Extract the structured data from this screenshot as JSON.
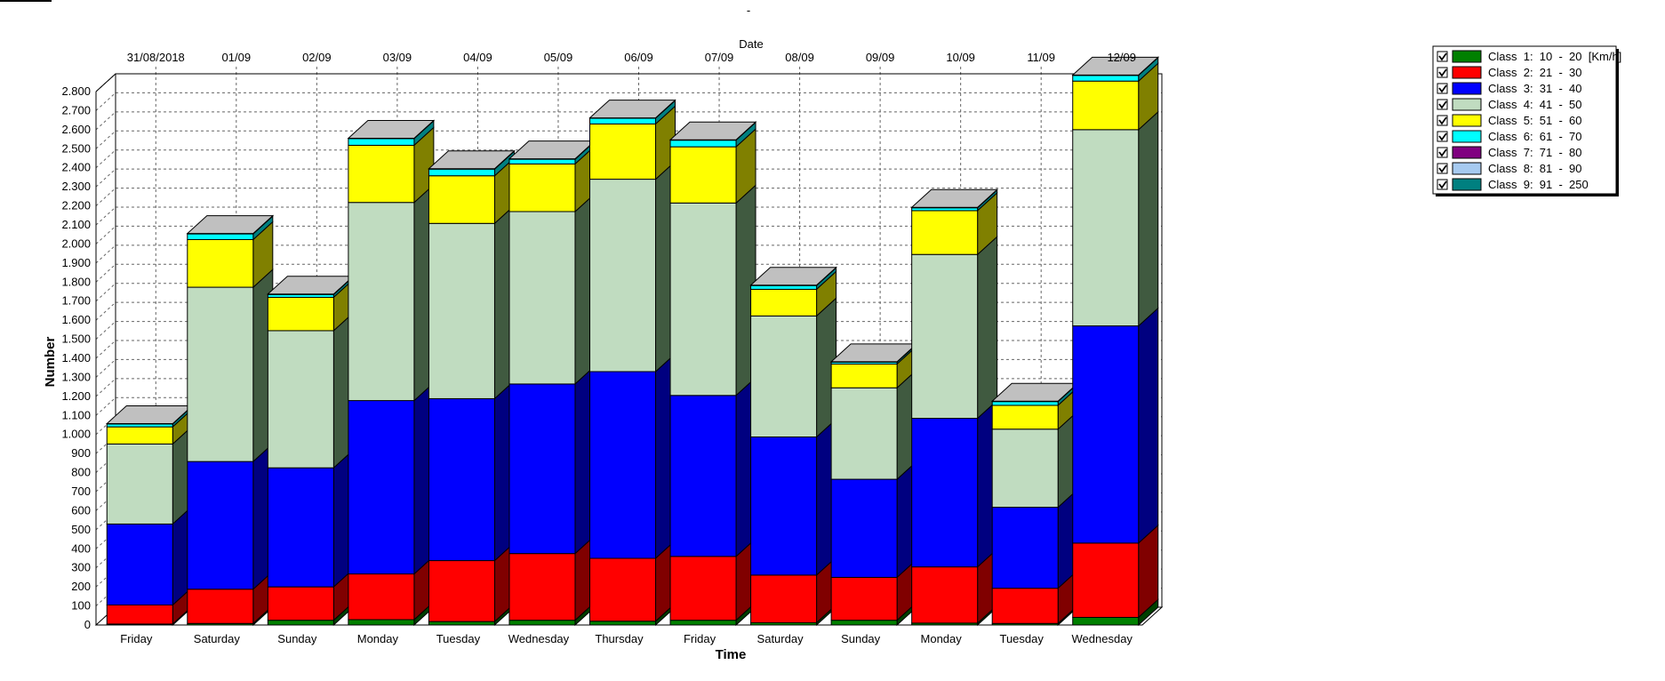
{
  "page": {
    "top_mark": "-"
  },
  "chart_data": {
    "type": "bar",
    "stacked": true,
    "three_d": true,
    "title": "",
    "xlabel": "Time",
    "ylabel": "Number",
    "top_axis_label": "Date",
    "categories": [
      "Friday",
      "Saturday",
      "Sunday",
      "Monday",
      "Tuesday",
      "Wednesday",
      "Thursday",
      "Friday",
      "Saturday",
      "Sunday",
      "Monday",
      "Tuesday",
      "Wednesday"
    ],
    "top_categories": [
      "31/08/2018",
      "01/09",
      "02/09",
      "03/09",
      "04/09",
      "05/09",
      "06/09",
      "07/09",
      "08/09",
      "09/09",
      "10/09",
      "11/09",
      "12/09"
    ],
    "ylim": [
      0,
      2800
    ],
    "y_ticks": [
      0,
      100,
      200,
      300,
      400,
      500,
      600,
      700,
      800,
      900,
      1000,
      1100,
      1200,
      1300,
      1400,
      1500,
      1600,
      1700,
      1800,
      1900,
      2000,
      2100,
      2200,
      2300,
      2400,
      2500,
      2600,
      2700,
      2800
    ],
    "y_tick_labels": [
      "0",
      "100",
      "200",
      "300",
      "400",
      "500",
      "600",
      "700",
      "800",
      "900",
      "1.000",
      "1.100",
      "1.200",
      "1.300",
      "1.400",
      "1.500",
      "1.600",
      "1.700",
      "1.800",
      "1.900",
      "2.000",
      "2.100",
      "2.200",
      "2.300",
      "2.400",
      "2.500",
      "2.600",
      "2.700",
      "2.800"
    ],
    "grid": true,
    "legend_position": "top-right",
    "series": [
      {
        "name": "Class 1: 10 - 20 [Km/h]",
        "color": "#008000",
        "side": "#004000",
        "values": [
          5,
          8,
          25,
          28,
          18,
          25,
          20,
          25,
          12,
          25,
          10,
          8,
          40
        ]
      },
      {
        "name": "Class 2: 21 - 30",
        "color": "#ff0000",
        "side": "#800000",
        "values": [
          100,
          180,
          175,
          240,
          320,
          350,
          330,
          335,
          250,
          225,
          295,
          185,
          390
        ]
      },
      {
        "name": "Class 3: 31 - 40",
        "color": "#0000ff",
        "side": "#000080",
        "values": [
          425,
          670,
          625,
          910,
          850,
          890,
          980,
          845,
          725,
          515,
          780,
          425,
          1140
        ]
      },
      {
        "name": "Class 4: 41 - 50",
        "color": "#c0dcc0",
        "side": "#405a40",
        "values": [
          420,
          915,
          720,
          1040,
          920,
          905,
          1010,
          1010,
          635,
          480,
          860,
          410,
          1030
        ]
      },
      {
        "name": "Class 5: 51 - 60",
        "color": "#ffff00",
        "side": "#808000",
        "values": [
          90,
          250,
          175,
          300,
          250,
          250,
          290,
          295,
          140,
          125,
          230,
          125,
          255
        ]
      },
      {
        "name": "Class 6: 61 - 70",
        "color": "#00ffff",
        "side": "#008080",
        "values": [
          15,
          30,
          15,
          35,
          35,
          25,
          30,
          35,
          20,
          10,
          15,
          20,
          30
        ]
      },
      {
        "name": "Class 7: 71 - 80",
        "color": "#800080",
        "side": "#400040",
        "values": [
          2,
          2,
          2,
          2,
          2,
          2,
          2,
          2,
          2,
          2,
          2,
          2,
          2
        ]
      },
      {
        "name": "Class 8: 81 - 90",
        "color": "#a6caf0",
        "side": "#536578",
        "values": [
          0,
          0,
          0,
          0,
          0,
          0,
          0,
          0,
          0,
          0,
          0,
          0,
          0
        ]
      },
      {
        "name": "Class 9: 91 - 250",
        "color": "#008080",
        "side": "#004040",
        "values": [
          0,
          0,
          0,
          0,
          0,
          0,
          0,
          0,
          0,
          0,
          0,
          0,
          0
        ]
      }
    ],
    "legend": [
      {
        "checked": true,
        "label": "Class  1:  10  -  20  [Km/h]"
      },
      {
        "checked": true,
        "label": "Class  2:  21  -  30"
      },
      {
        "checked": true,
        "label": "Class  3:  31  -  40"
      },
      {
        "checked": true,
        "label": "Class  4:  41  -  50"
      },
      {
        "checked": true,
        "label": "Class  5:  51  -  60"
      },
      {
        "checked": true,
        "label": "Class  6:  61  -  70"
      },
      {
        "checked": true,
        "label": "Class  7:  71  -  80"
      },
      {
        "checked": true,
        "label": "Class  8:  81  -  90"
      },
      {
        "checked": true,
        "label": "Class  9:  91  -  250"
      }
    ],
    "top_color": "#c0c0c0"
  }
}
